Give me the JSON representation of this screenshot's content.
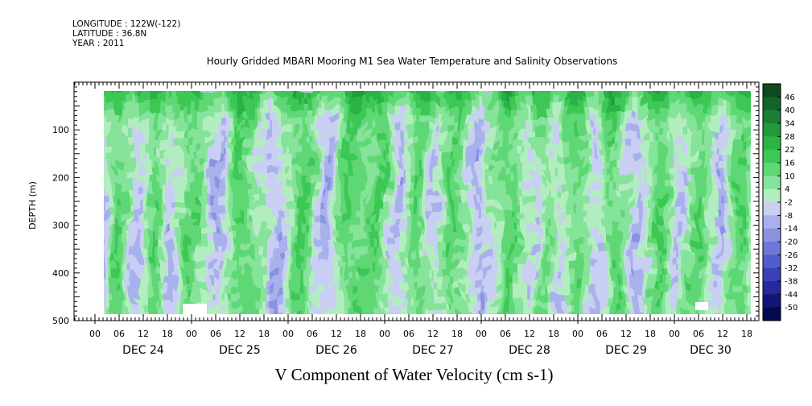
{
  "meta": {
    "longitude": "LONGITUDE : 122W(-122)",
    "latitude": "LATITUDE : 36.8N",
    "year": "YEAR : 2011"
  },
  "title": "Hourly Gridded MBARI Mooring M1 Sea Water Temperature and Salinity Observations",
  "bottom_title": "V Component of Water Velocity (cm s-1)",
  "chart_data": {
    "type": "heatmap",
    "title": "Hourly Gridded MBARI Mooring M1 Sea Water Temperature and Salinity Observations",
    "xlabel": "",
    "ylabel": "DEPTH (m)",
    "colorbar_label": "V Component of Water Velocity (cm s-1)",
    "ylim": [
      500,
      0
    ],
    "yticks": [
      100,
      200,
      300,
      400,
      500
    ],
    "data_depth_range": [
      15,
      480
    ],
    "x_hour_ticks": [
      "00",
      "06",
      "12",
      "18",
      "00",
      "06",
      "12",
      "18",
      "00",
      "06",
      "12",
      "18",
      "00",
      "06",
      "12",
      "18",
      "00",
      "06",
      "12",
      "18",
      "00",
      "06",
      "12",
      "18",
      "00",
      "06",
      "12",
      "18"
    ],
    "x_day_labels": [
      "DEC 24",
      "DEC 25",
      "DEC 26",
      "DEC 27",
      "DEC 28",
      "DEC 29",
      "DEC 30"
    ],
    "colorbar_labels": [
      "46",
      "40",
      "34",
      "28",
      "22",
      "16",
      "10",
      "4",
      "-2",
      "-8",
      "-14",
      "-20",
      "-26",
      "-32",
      "-38",
      "-44",
      "-50"
    ],
    "colorbar_colors": [
      "#0d4a1f",
      "#13642a",
      "#1a7f33",
      "#219a3c",
      "#2bb345",
      "#3cc856",
      "#5ed774",
      "#86e39a",
      "#b2edbf",
      "#c8cff2",
      "#a9b1ec",
      "#8a93e2",
      "#6f77d8",
      "#535ccc",
      "#3a41b8",
      "#24299c",
      "#121578",
      "#06084f"
    ],
    "features": {
      "green_bands_hours": [
        5,
        14,
        23,
        36,
        51,
        63,
        70,
        80,
        88,
        103,
        111,
        119,
        128,
        140,
        149,
        160,
        170
      ],
      "blue_bands_hours": [
        1,
        10,
        19,
        30,
        44,
        57,
        75,
        84,
        95,
        108,
        115,
        124,
        134,
        145,
        155,
        165
      ],
      "note_surface": "green (positive) values near surface 20-60 m"
    },
    "grid": false
  }
}
